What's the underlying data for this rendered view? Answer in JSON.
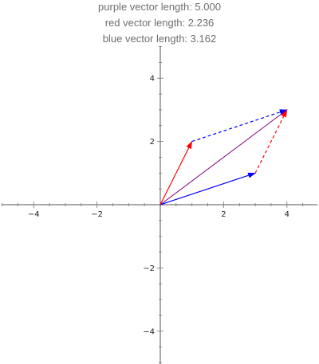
{
  "readouts": [
    "purple vector length: 5.000",
    "red vector length: 2.236",
    "blue vector length: 3.162"
  ],
  "chart_data": {
    "type": "vector-diagram",
    "xlim": [
      -5,
      5
    ],
    "ylim": [
      -5,
      5
    ],
    "x_ticks": [
      -4,
      -2,
      2,
      4
    ],
    "y_ticks": [
      4,
      2,
      -2,
      -4
    ],
    "x_tick_labels": [
      "−4",
      "−2",
      "2",
      "4"
    ],
    "y_tick_labels": [
      "4",
      "2",
      "−2",
      "−4"
    ],
    "vectors": [
      {
        "from": [
          0,
          0
        ],
        "to": [
          1,
          2
        ],
        "color": "#ff0000",
        "style": "solid",
        "arrow": true
      },
      {
        "from": [
          0,
          0
        ],
        "to": [
          3,
          1
        ],
        "color": "#0000ff",
        "style": "solid",
        "arrow": true
      },
      {
        "from": [
          0,
          0
        ],
        "to": [
          4,
          3
        ],
        "color": "#800080",
        "style": "solid",
        "arrow": true
      },
      {
        "from": [
          1,
          2
        ],
        "to": [
          4,
          3
        ],
        "color": "#0000ff",
        "style": "dashed",
        "arrow": true
      },
      {
        "from": [
          3,
          1
        ],
        "to": [
          4,
          3
        ],
        "color": "#ff0000",
        "style": "dashed",
        "arrow": true
      }
    ],
    "grid": false
  }
}
